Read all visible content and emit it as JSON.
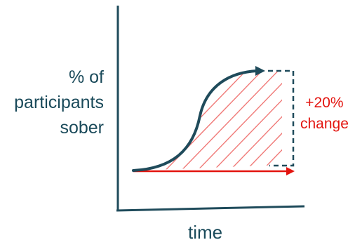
{
  "labels": {
    "y_axis_lines": [
      "% of",
      "participants",
      "sober"
    ],
    "x_axis": "time",
    "change_lines": [
      "+20%",
      "change"
    ]
  },
  "colors": {
    "axis": "#1f4b5b",
    "curve": "#1f4b5b",
    "baseline": "#e3140f",
    "hatch": "#f07a78",
    "label_text": "#1a4a5a",
    "change_text": "#e3140f"
  },
  "icons": {
    "curve_arrowhead": "arrow-right-head",
    "baseline_arrowhead": "arrow-right-head"
  }
}
